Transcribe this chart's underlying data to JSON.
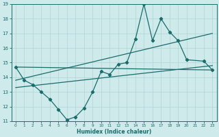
{
  "xlabel": "Humidex (Indice chaleur)",
  "x": [
    0,
    1,
    2,
    3,
    4,
    5,
    6,
    7,
    8,
    9,
    10,
    11,
    12,
    13,
    14,
    15,
    16,
    17,
    18,
    19,
    20,
    22,
    23
  ],
  "line1": [
    14.7,
    13.8,
    13.5,
    13.0,
    12.5,
    11.8,
    11.1,
    11.3,
    11.9,
    13.0,
    14.4,
    14.2,
    14.9,
    15.0,
    16.6,
    19.0,
    16.5,
    18.0,
    17.1,
    16.5,
    15.2,
    15.1,
    14.5
  ],
  "flat_line": [
    [
      0,
      14.7
    ],
    [
      23,
      14.5
    ]
  ],
  "steep_line": [
    [
      0,
      13.8
    ],
    [
      23,
      17.0
    ]
  ],
  "gentle_line": [
    [
      0,
      13.3
    ],
    [
      23,
      14.8
    ]
  ],
  "color": "#1a6b6b",
  "bg_color": "#ceeaea",
  "grid_color": "#aed4d4",
  "ylim": [
    11,
    19
  ],
  "xlim": [
    -0.5,
    23.5
  ],
  "yticks": [
    11,
    12,
    13,
    14,
    15,
    16,
    17,
    18,
    19
  ],
  "xticks": [
    0,
    1,
    2,
    3,
    4,
    5,
    6,
    7,
    8,
    9,
    10,
    11,
    12,
    13,
    14,
    15,
    16,
    17,
    18,
    19,
    20,
    21,
    22,
    23
  ]
}
